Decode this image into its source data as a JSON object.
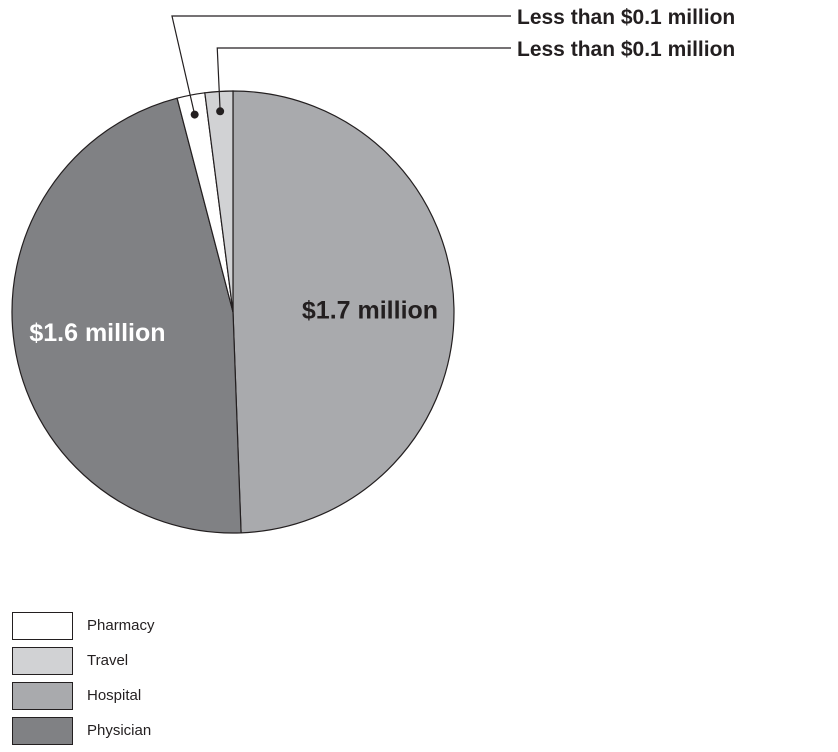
{
  "chart_data": {
    "type": "pie",
    "title": "",
    "slices": [
      {
        "category": "Hospital",
        "value": 1.7,
        "label": "$1.7 million",
        "color": "#a9aaad",
        "label_color": "#231f20"
      },
      {
        "category": "Physician",
        "value": 1.6,
        "label": "$1.6 million",
        "color": "#808184",
        "label_color": "#ffffff"
      },
      {
        "category": "Pharmacy",
        "value": 0.07,
        "label": "Less than $0.1 million",
        "color": "#ffffff",
        "label_color": "#231f20"
      },
      {
        "category": "Travel",
        "value": 0.07,
        "label": "Less than $0.1 million",
        "color": "#d1d2d4",
        "label_color": "#231f20"
      }
    ],
    "legend": {
      "placement": "bottom-left",
      "items": [
        {
          "label": "Pharmacy",
          "color": "#ffffff"
        },
        {
          "label": "Travel",
          "color": "#d1d2d4"
        },
        {
          "label": "Hospital",
          "color": "#a9aaad"
        },
        {
          "label": "Physician",
          "color": "#808184"
        }
      ]
    }
  }
}
